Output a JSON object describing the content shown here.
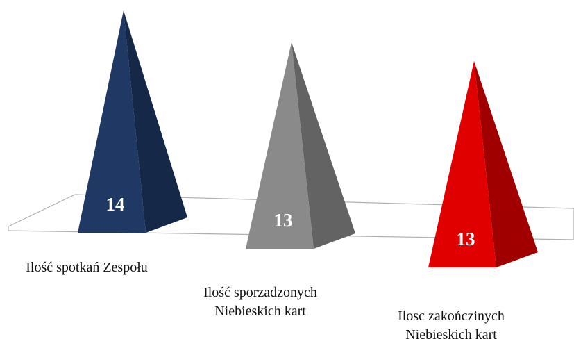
{
  "chart_data": {
    "type": "pyramid",
    "categories": [
      "Ilość spotkań Zespołu",
      "Ilość sporzadzonych Niebieskich kart",
      "Ilosc zakończinych Niebieskich kart"
    ],
    "values": [
      14,
      13,
      13
    ],
    "colors": [
      "#1f3864",
      "#8a8a8a",
      "#e00000"
    ]
  }
}
